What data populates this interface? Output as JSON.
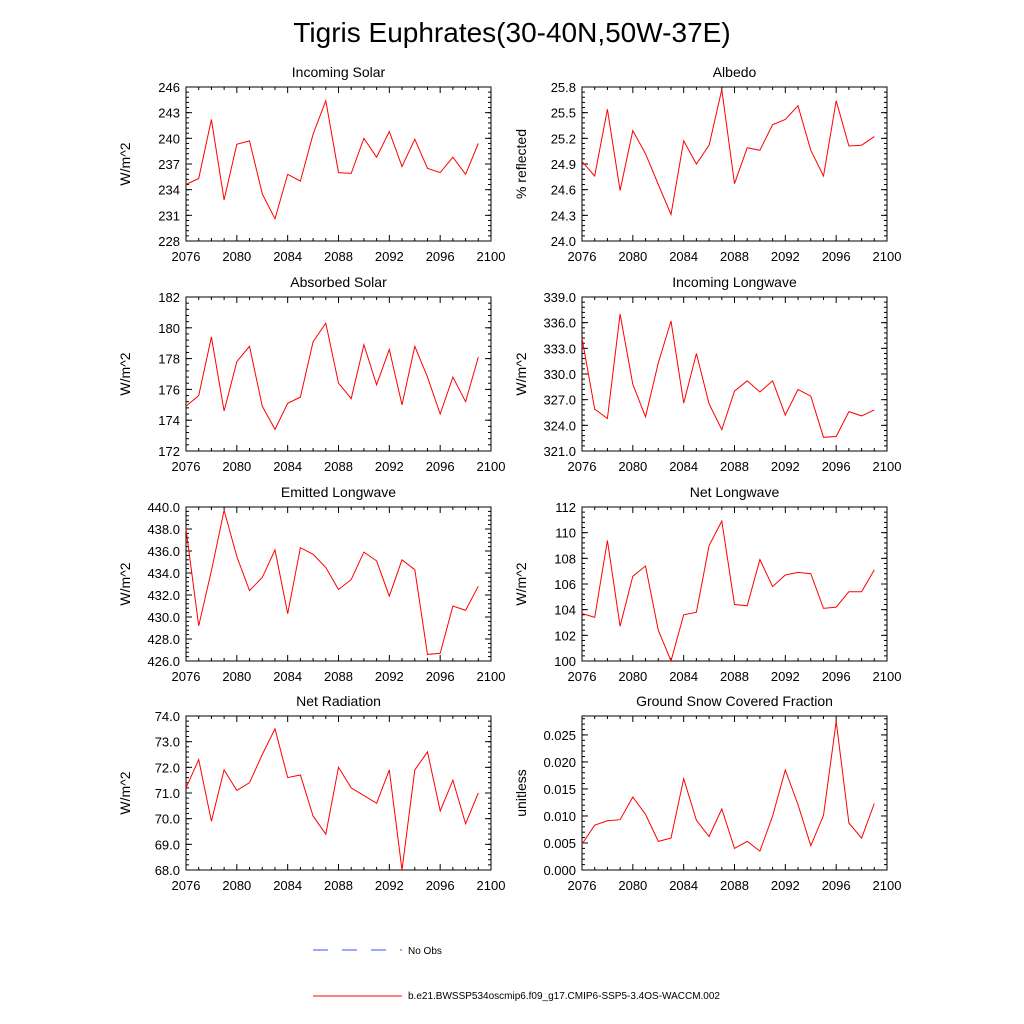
{
  "figure": {
    "title": "Tigris Euphrates(30-40N,50W-37E)",
    "legend": {
      "entries": [
        {
          "label": "No Obs",
          "color": "#3355ff",
          "style": "dashed"
        },
        {
          "label": "b.e21.BWSSP534oscmip6.f09_g17.CMIP6-SSP5-3.4OS-WACCM.002",
          "color": "#ff0000",
          "style": "solid"
        }
      ],
      "placement": "bottom-center"
    }
  },
  "chart_data": [
    {
      "type": "line",
      "title": "Incoming Solar",
      "ylabel": "W/m^2",
      "xlim": [
        2076,
        2100
      ],
      "ylim": [
        228,
        246
      ],
      "xticks": [
        2076,
        2080,
        2084,
        2088,
        2092,
        2096,
        2100
      ],
      "yticks": [
        "228",
        "231",
        "234",
        "237",
        "240",
        "243",
        "246"
      ],
      "x": [
        2076,
        2077,
        2078,
        2079,
        2080,
        2081,
        2082,
        2083,
        2084,
        2085,
        2086,
        2087,
        2088,
        2089,
        2090,
        2091,
        2092,
        2093,
        2094,
        2095,
        2096,
        2097,
        2098,
        2099
      ],
      "series": [
        {
          "color": "#ff0000",
          "values": [
            234.6,
            235.3,
            242.2,
            232.8,
            239.3,
            239.7,
            233.5,
            230.6,
            235.8,
            235.0,
            240.5,
            244.4,
            236.0,
            235.9,
            240.0,
            237.8,
            240.8,
            236.7,
            239.9,
            236.5,
            236.0,
            237.8,
            235.8,
            239.4
          ]
        }
      ]
    },
    {
      "type": "line",
      "title": "Albedo",
      "ylabel": "% reflected",
      "xlim": [
        2076,
        2100
      ],
      "ylim": [
        24.0,
        25.8
      ],
      "xticks": [
        2076,
        2080,
        2084,
        2088,
        2092,
        2096,
        2100
      ],
      "yticks": [
        "24.0",
        "24.3",
        "24.6",
        "24.9",
        "25.2",
        "25.5",
        "25.8"
      ],
      "x": [
        2076,
        2077,
        2078,
        2079,
        2080,
        2081,
        2082,
        2083,
        2084,
        2085,
        2086,
        2087,
        2088,
        2089,
        2090,
        2091,
        2092,
        2093,
        2094,
        2095,
        2096,
        2097,
        2098,
        2099
      ],
      "series": [
        {
          "color": "#ff0000",
          "values": [
            24.93,
            24.76,
            25.54,
            24.59,
            25.29,
            25.02,
            24.66,
            24.31,
            25.17,
            24.9,
            25.12,
            25.77,
            24.67,
            25.09,
            25.06,
            25.36,
            25.42,
            25.58,
            25.06,
            24.76,
            25.64,
            25.11,
            25.12,
            25.22
          ]
        }
      ]
    },
    {
      "type": "line",
      "title": "Absorbed Solar",
      "ylabel": "W/m^2",
      "xlim": [
        2076,
        2100
      ],
      "ylim": [
        172,
        182
      ],
      "xticks": [
        2076,
        2080,
        2084,
        2088,
        2092,
        2096,
        2100
      ],
      "yticks": [
        "172",
        "174",
        "176",
        "178",
        "180",
        "182"
      ],
      "x": [
        2076,
        2077,
        2078,
        2079,
        2080,
        2081,
        2082,
        2083,
        2084,
        2085,
        2086,
        2087,
        2088,
        2089,
        2090,
        2091,
        2092,
        2093,
        2094,
        2095,
        2096,
        2097,
        2098,
        2099
      ],
      "series": [
        {
          "color": "#ff0000",
          "values": [
            174.9,
            175.6,
            179.4,
            174.6,
            177.8,
            178.8,
            174.9,
            173.4,
            175.1,
            175.5,
            179.1,
            180.3,
            176.4,
            175.4,
            178.9,
            176.3,
            178.6,
            175.0,
            178.8,
            176.8,
            174.4,
            176.8,
            175.2,
            178.1
          ]
        }
      ]
    },
    {
      "type": "line",
      "title": "Incoming Longwave",
      "ylabel": "W/m^2",
      "xlim": [
        2076,
        2100
      ],
      "ylim": [
        321.0,
        339.0
      ],
      "xticks": [
        2076,
        2080,
        2084,
        2088,
        2092,
        2096,
        2100
      ],
      "yticks": [
        "321.0",
        "324.0",
        "327.0",
        "330.0",
        "333.0",
        "336.0",
        "339.0"
      ],
      "x": [
        2076,
        2077,
        2078,
        2079,
        2080,
        2081,
        2082,
        2083,
        2084,
        2085,
        2086,
        2087,
        2088,
        2089,
        2090,
        2091,
        2092,
        2093,
        2094,
        2095,
        2096,
        2097,
        2098,
        2099
      ],
      "series": [
        {
          "color": "#ff0000",
          "values": [
            334.2,
            325.9,
            324.8,
            337.0,
            328.8,
            325.0,
            331.3,
            336.2,
            326.6,
            332.4,
            326.5,
            323.5,
            328.0,
            329.2,
            327.9,
            329.2,
            325.2,
            328.2,
            327.4,
            322.6,
            322.7,
            325.6,
            325.1,
            325.8
          ]
        }
      ]
    },
    {
      "type": "line",
      "title": "Emitted Longwave",
      "ylabel": "W/m^2",
      "xlim": [
        2076,
        2100
      ],
      "ylim": [
        426.0,
        440.0
      ],
      "xticks": [
        2076,
        2080,
        2084,
        2088,
        2092,
        2096,
        2100
      ],
      "yticks": [
        "426.0",
        "428.0",
        "430.0",
        "432.0",
        "434.0",
        "436.0",
        "438.0",
        "440.0"
      ],
      "x": [
        2076,
        2077,
        2078,
        2079,
        2080,
        2081,
        2082,
        2083,
        2084,
        2085,
        2086,
        2087,
        2088,
        2089,
        2090,
        2091,
        2092,
        2093,
        2094,
        2095,
        2096,
        2097,
        2098,
        2099
      ],
      "series": [
        {
          "color": "#ff0000",
          "values": [
            438.0,
            429.2,
            434.2,
            439.7,
            435.5,
            432.4,
            433.6,
            436.1,
            430.3,
            436.3,
            435.7,
            434.5,
            432.5,
            433.4,
            435.9,
            435.1,
            431.9,
            435.2,
            434.3,
            426.6,
            426.7,
            431.0,
            430.6,
            432.8
          ]
        }
      ]
    },
    {
      "type": "line",
      "title": "Net Longwave",
      "ylabel": "W/m^2",
      "xlim": [
        2076,
        2100
      ],
      "ylim": [
        100,
        112
      ],
      "xticks": [
        2076,
        2080,
        2084,
        2088,
        2092,
        2096,
        2100
      ],
      "yticks": [
        "100",
        "102",
        "104",
        "106",
        "108",
        "110",
        "112"
      ],
      "x": [
        2076,
        2077,
        2078,
        2079,
        2080,
        2081,
        2082,
        2083,
        2084,
        2085,
        2086,
        2087,
        2088,
        2089,
        2090,
        2091,
        2092,
        2093,
        2094,
        2095,
        2096,
        2097,
        2098,
        2099
      ],
      "series": [
        {
          "color": "#ff0000",
          "values": [
            103.7,
            103.4,
            109.4,
            102.7,
            106.6,
            107.4,
            102.4,
            100.0,
            103.6,
            103.8,
            109.0,
            110.9,
            104.4,
            104.3,
            107.9,
            105.8,
            106.7,
            106.9,
            106.8,
            104.1,
            104.2,
            105.4,
            105.4,
            107.1
          ]
        }
      ]
    },
    {
      "type": "line",
      "title": "Net Radiation",
      "ylabel": "W/m^2",
      "xlim": [
        2076,
        2100
      ],
      "ylim": [
        68.0,
        74.0
      ],
      "xticks": [
        2076,
        2080,
        2084,
        2088,
        2092,
        2096,
        2100
      ],
      "yticks": [
        "68.0",
        "69.0",
        "70.0",
        "71.0",
        "72.0",
        "73.0",
        "74.0"
      ],
      "x": [
        2076,
        2077,
        2078,
        2079,
        2080,
        2081,
        2082,
        2083,
        2084,
        2085,
        2086,
        2087,
        2088,
        2089,
        2090,
        2091,
        2092,
        2093,
        2094,
        2095,
        2096,
        2097,
        2098,
        2099
      ],
      "series": [
        {
          "color": "#ff0000",
          "values": [
            71.2,
            72.3,
            69.9,
            71.9,
            71.1,
            71.4,
            72.5,
            73.5,
            71.6,
            71.7,
            70.1,
            69.4,
            72.0,
            71.2,
            70.9,
            70.6,
            71.9,
            68.0,
            71.9,
            72.6,
            70.3,
            71.5,
            69.8,
            71.0
          ]
        }
      ]
    },
    {
      "type": "line",
      "title": "Ground Snow Covered Fraction",
      "ylabel": "unitless",
      "xlim": [
        2076,
        2100
      ],
      "ylim": [
        0.0,
        0.0285
      ],
      "xticks": [
        2076,
        2080,
        2084,
        2088,
        2092,
        2096,
        2100
      ],
      "yticks": [
        "0.000",
        "0.005",
        "0.010",
        "0.015",
        "0.020",
        "0.025"
      ],
      "x": [
        2076,
        2077,
        2078,
        2079,
        2080,
        2081,
        2082,
        2083,
        2084,
        2085,
        2086,
        2087,
        2088,
        2089,
        2090,
        2091,
        2092,
        2093,
        2094,
        2095,
        2096,
        2097,
        2098,
        2099
      ],
      "series": [
        {
          "color": "#ff0000",
          "values": [
            0.0048,
            0.0083,
            0.0091,
            0.0093,
            0.0135,
            0.0103,
            0.0053,
            0.0059,
            0.0169,
            0.0092,
            0.0062,
            0.0113,
            0.004,
            0.0053,
            0.0035,
            0.01,
            0.0185,
            0.0121,
            0.0045,
            0.0101,
            0.0275,
            0.0087,
            0.0059,
            0.0123
          ]
        }
      ]
    }
  ]
}
